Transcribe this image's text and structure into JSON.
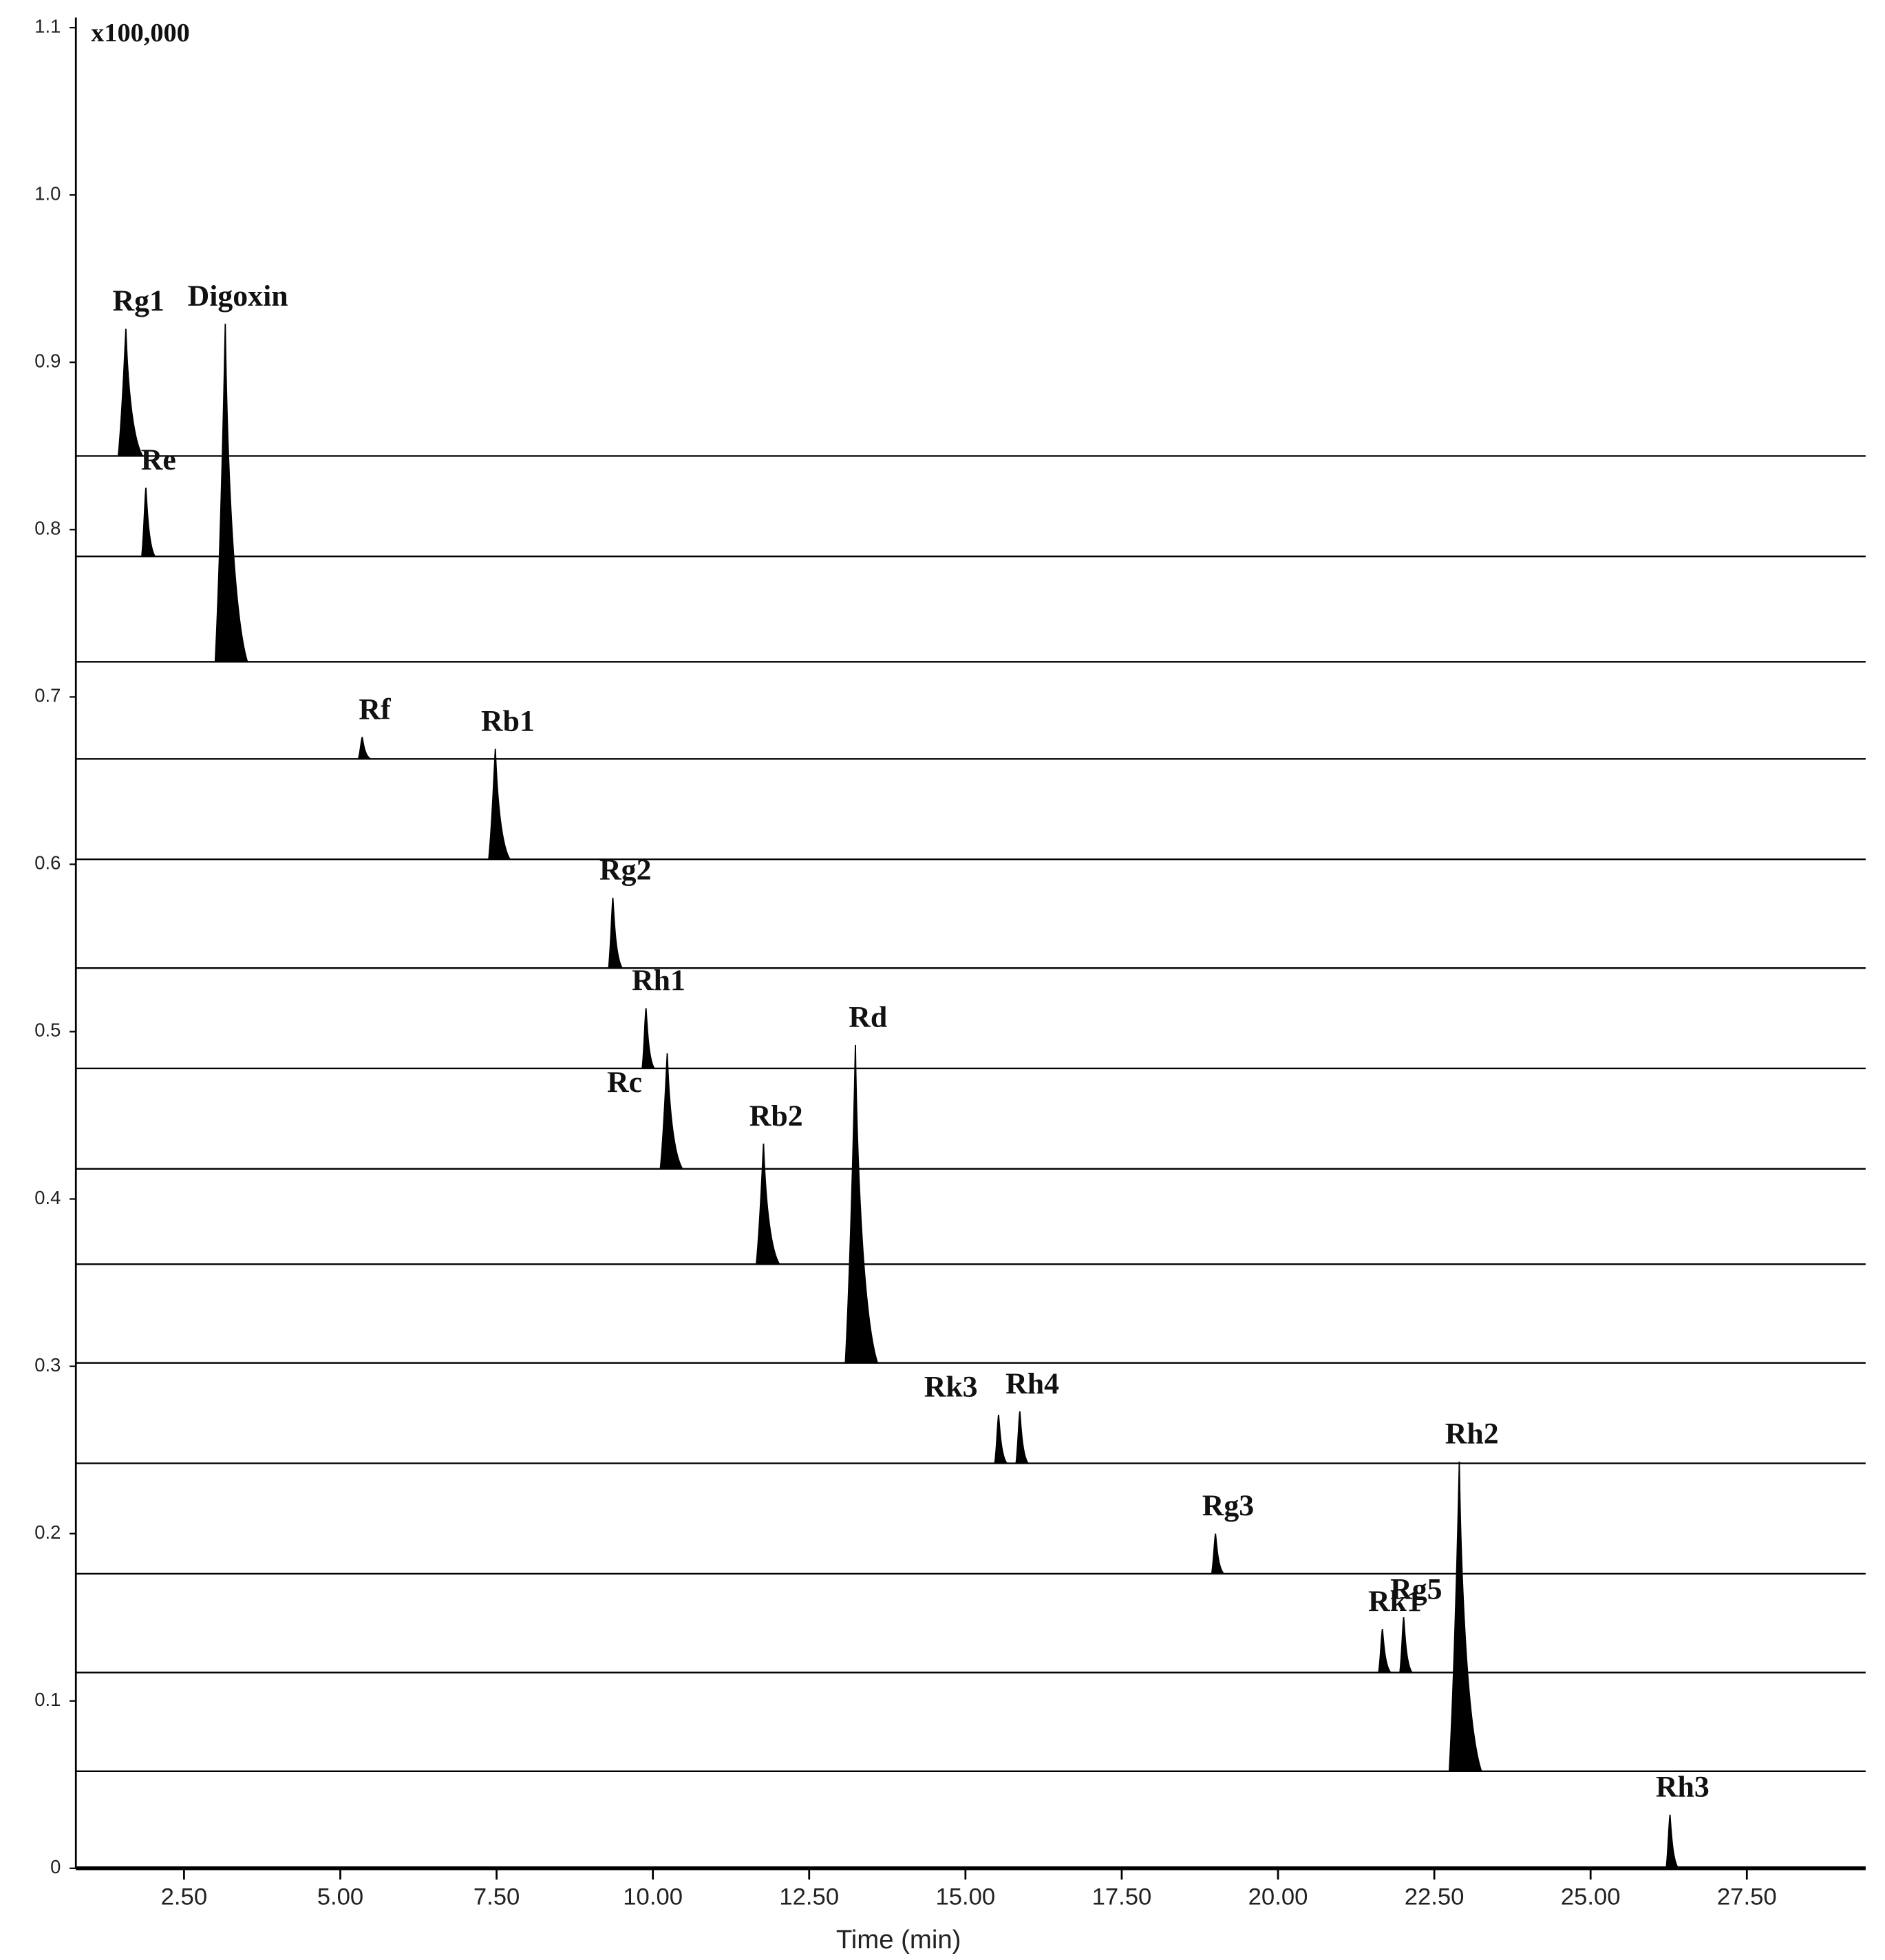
{
  "chart_data": {
    "type": "chromatogram",
    "unit_label": "x100,000",
    "x_label": "Time (min)",
    "xlim": [
      0.77,
      29.4
    ],
    "ylim": [
      0,
      1.1
    ],
    "xticks": [
      {
        "value": 2.5,
        "label": "2.50"
      },
      {
        "value": 5,
        "label": "5.00"
      },
      {
        "value": 7.5,
        "label": "7.50"
      },
      {
        "value": 10,
        "label": "10.00"
      },
      {
        "value": 12.5,
        "label": "12.50"
      },
      {
        "value": 15,
        "label": "15.00"
      },
      {
        "value": 17.5,
        "label": "17.50"
      },
      {
        "value": 20,
        "label": "20.00"
      },
      {
        "value": 22.5,
        "label": "22.50"
      },
      {
        "value": 25,
        "label": "25.00"
      },
      {
        "value": 27.5,
        "label": "27.50"
      }
    ],
    "yticks": [
      0,
      0.1,
      0.2,
      0.3,
      0.4,
      0.5,
      0.6,
      0.7,
      0.8,
      0.9,
      {
        "value": 1,
        "label": "1.0"
      },
      1.1
    ],
    "color": "#000000",
    "traces": [
      {
        "baseline": 0.844,
        "peaks": [
          {
            "name": "Rg1",
            "x": 1.57,
            "y": 0.92
          }
        ]
      },
      {
        "baseline": 0.784,
        "peaks": [
          {
            "name": "Re",
            "x": 1.89,
            "y": 0.825
          }
        ]
      },
      {
        "baseline": 0.721,
        "peaks": [
          {
            "name": "Digoxin",
            "x": 3.16,
            "y": 0.923
          }
        ]
      },
      {
        "baseline": 0.663,
        "peaks": [
          {
            "name": "Rf",
            "x": 5.35,
            "y": 0.676
          }
        ]
      },
      {
        "baseline": 0.603,
        "peaks": [
          {
            "name": "Rb1",
            "x": 7.48,
            "y": 0.669
          }
        ]
      },
      {
        "baseline": 0.538,
        "peaks": [
          {
            "name": "Rg2",
            "x": 9.36,
            "y": 0.58
          }
        ]
      },
      {
        "baseline": 0.478,
        "peaks": [
          {
            "name": "Rh1",
            "x": 9.89,
            "y": 0.514
          }
        ]
      },
      {
        "baseline": 0.418,
        "peaks": [
          {
            "name": "Rc",
            "x": 10.23,
            "y": 0.487
          }
        ]
      },
      {
        "baseline": 0.361,
        "peaks": [
          {
            "name": "Rb2",
            "x": 11.77,
            "y": 0.433
          }
        ]
      },
      {
        "baseline": 0.302,
        "peaks": [
          {
            "name": "Rd",
            "x": 13.24,
            "y": 0.492
          }
        ]
      },
      {
        "baseline": 0.242,
        "peaks": [
          {
            "name": "Rk3",
            "x": 15.53,
            "y": 0.271
          },
          {
            "name": "Rh4",
            "x": 15.87,
            "y": 0.273
          }
        ]
      },
      {
        "baseline": 0.176,
        "peaks": [
          {
            "name": "Rg3",
            "x": 19.0,
            "y": 0.2
          }
        ]
      },
      {
        "baseline": 0.117,
        "peaks": [
          {
            "name": "Rk1",
            "x": 21.67,
            "y": 0.143
          },
          {
            "name": "Rg5",
            "x": 22.01,
            "y": 0.15
          }
        ]
      },
      {
        "baseline": 0.058,
        "peaks": [
          {
            "name": "Rh2",
            "x": 22.9,
            "y": 0.243
          }
        ]
      },
      {
        "baseline": 0,
        "peaks": [
          {
            "name": "Rh3",
            "x": 26.27,
            "y": 0.032
          }
        ]
      }
    ]
  }
}
